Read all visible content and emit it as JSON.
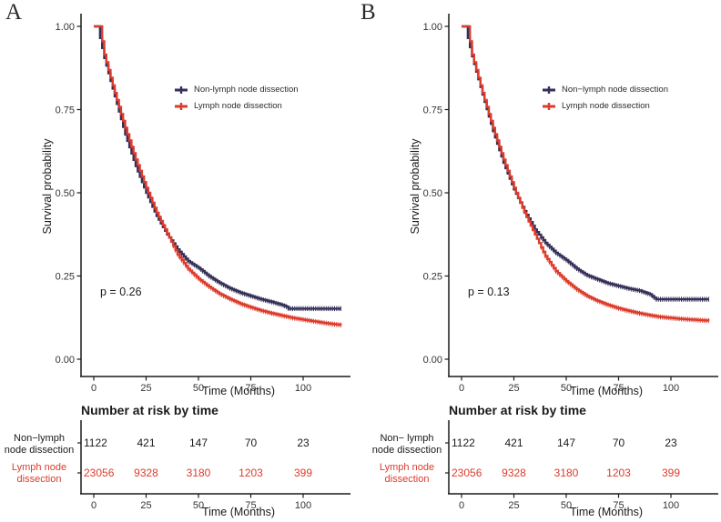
{
  "chart_data": [
    {
      "panel_label": "A",
      "type": "line",
      "subtype": "kaplan-meier-step",
      "xlabel": "Time (Months)",
      "ylabel": "Survival probability",
      "xlim": [
        0,
        118
      ],
      "xticks": [
        0,
        25,
        50,
        75,
        100
      ],
      "ylim": [
        0,
        1
      ],
      "yticks": [
        0.0,
        0.25,
        0.5,
        0.75,
        1.0
      ],
      "grid": false,
      "legend_position": "inside-upper-right",
      "annotation": "p = 0.26",
      "series": [
        {
          "name": "Non-lymph node dissection",
          "color": "#343058",
          "points": [
            [
              0,
              1
            ],
            [
              2,
              1
            ],
            [
              3,
              0.965
            ],
            [
              5,
              0.905
            ],
            [
              10,
              0.79
            ],
            [
              15,
              0.675
            ],
            [
              20,
              0.58
            ],
            [
              25,
              0.5
            ],
            [
              30,
              0.43
            ],
            [
              35,
              0.375
            ],
            [
              40,
              0.33
            ],
            [
              45,
              0.295
            ],
            [
              50,
              0.275
            ],
            [
              55,
              0.25
            ],
            [
              60,
              0.23
            ],
            [
              65,
              0.213
            ],
            [
              70,
              0.2
            ],
            [
              75,
              0.19
            ],
            [
              80,
              0.18
            ],
            [
              85,
              0.172
            ],
            [
              90,
              0.163
            ],
            [
              92,
              0.158
            ],
            [
              93,
              0.152
            ],
            [
              118,
              0.152
            ]
          ]
        },
        {
          "name": "Lymph node dissection",
          "color": "#DD3B2B",
          "points": [
            [
              0,
              1
            ],
            [
              3,
              1
            ],
            [
              4,
              0.955
            ],
            [
              5,
              0.915
            ],
            [
              10,
              0.8
            ],
            [
              15,
              0.695
            ],
            [
              20,
              0.6
            ],
            [
              25,
              0.515
            ],
            [
              30,
              0.44
            ],
            [
              35,
              0.378
            ],
            [
              40,
              0.315
            ],
            [
              45,
              0.272
            ],
            [
              50,
              0.242
            ],
            [
              55,
              0.218
            ],
            [
              60,
              0.197
            ],
            [
              65,
              0.181
            ],
            [
              70,
              0.167
            ],
            [
              75,
              0.156
            ],
            [
              80,
              0.146
            ],
            [
              85,
              0.138
            ],
            [
              90,
              0.131
            ],
            [
              95,
              0.124
            ],
            [
              100,
              0.119
            ],
            [
              105,
              0.114
            ],
            [
              110,
              0.109
            ],
            [
              115,
              0.105
            ],
            [
              118,
              0.103
            ]
          ]
        }
      ],
      "risk_table": {
        "title": "Number at risk by time",
        "xlabel": "Time (Months)",
        "times": [
          0,
          25,
          50,
          75,
          100
        ],
        "rows": [
          {
            "label_lines": [
              "Non−lymph",
              "node dissection"
            ],
            "color": "#1a1a1a",
            "values": [
              "1122",
              "421",
              "147",
              "70",
              "23"
            ]
          },
          {
            "label_lines": [
              "Lymph node",
              "dissection"
            ],
            "color": "#DD3B2B",
            "values": [
              "23056",
              "9328",
              "3180",
              "1203",
              "399"
            ]
          }
        ]
      }
    },
    {
      "panel_label": "B",
      "type": "line",
      "subtype": "kaplan-meier-step",
      "xlabel": "Time (Months)",
      "ylabel": "Survival probability",
      "xlim": [
        0,
        118
      ],
      "xticks": [
        0,
        25,
        50,
        75,
        100
      ],
      "ylim": [
        0,
        1
      ],
      "yticks": [
        0.0,
        0.25,
        0.5,
        0.75,
        1.0
      ],
      "grid": false,
      "legend_position": "inside-upper-right",
      "annotation": "p = 0.13",
      "series": [
        {
          "name": "Non−lymph node dissection",
          "color": "#343058",
          "points": [
            [
              0,
              1
            ],
            [
              2,
              1
            ],
            [
              3,
              0.965
            ],
            [
              5,
              0.91
            ],
            [
              10,
              0.795
            ],
            [
              15,
              0.685
            ],
            [
              20,
              0.59
            ],
            [
              25,
              0.51
            ],
            [
              30,
              0.445
            ],
            [
              35,
              0.39
            ],
            [
              40,
              0.35
            ],
            [
              45,
              0.32
            ],
            [
              50,
              0.298
            ],
            [
              55,
              0.272
            ],
            [
              60,
              0.252
            ],
            [
              65,
              0.24
            ],
            [
              70,
              0.228
            ],
            [
              75,
              0.22
            ],
            [
              80,
              0.212
            ],
            [
              85,
              0.206
            ],
            [
              90,
              0.195
            ],
            [
              93,
              0.18
            ],
            [
              118,
              0.18
            ]
          ]
        },
        {
          "name": "Lymph node dissection",
          "color": "#DD3B2B",
          "points": [
            [
              0,
              1
            ],
            [
              3,
              1
            ],
            [
              4,
              0.955
            ],
            [
              5,
              0.915
            ],
            [
              10,
              0.8
            ],
            [
              15,
              0.695
            ],
            [
              20,
              0.6
            ],
            [
              25,
              0.515
            ],
            [
              30,
              0.44
            ],
            [
              35,
              0.375
            ],
            [
              40,
              0.31
            ],
            [
              45,
              0.265
            ],
            [
              50,
              0.235
            ],
            [
              55,
              0.21
            ],
            [
              60,
              0.19
            ],
            [
              65,
              0.175
            ],
            [
              70,
              0.163
            ],
            [
              75,
              0.153
            ],
            [
              80,
              0.145
            ],
            [
              85,
              0.138
            ],
            [
              90,
              0.132
            ],
            [
              95,
              0.127
            ],
            [
              100,
              0.124
            ],
            [
              105,
              0.121
            ],
            [
              110,
              0.119
            ],
            [
              115,
              0.117
            ],
            [
              118,
              0.116
            ]
          ]
        }
      ],
      "risk_table": {
        "title": "Number at risk by time",
        "xlabel": "Time (Months)",
        "times": [
          0,
          25,
          50,
          75,
          100
        ],
        "rows": [
          {
            "label_lines": [
              "Non− lymph",
              "node dissection"
            ],
            "color": "#1a1a1a",
            "values": [
              "1122",
              "421",
              "147",
              "70",
              "23"
            ]
          },
          {
            "label_lines": [
              "Lymph node",
              "dissection"
            ],
            "color": "#DD3B2B",
            "values": [
              "23056",
              "9328",
              "3180",
              "1203",
              "399"
            ]
          }
        ]
      }
    }
  ]
}
